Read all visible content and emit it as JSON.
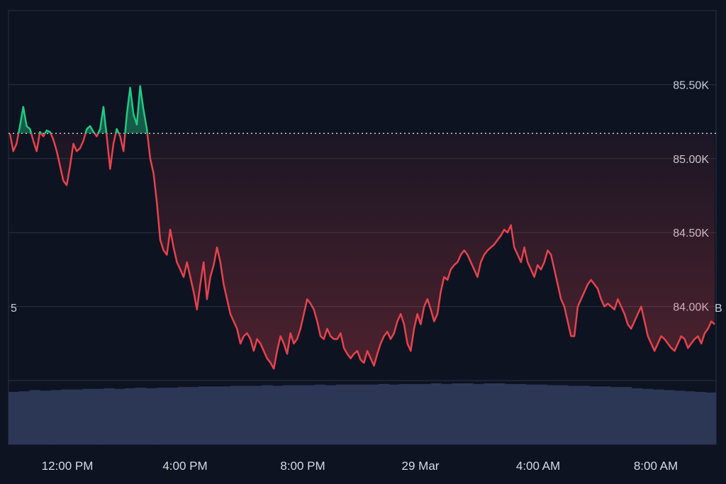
{
  "chart_data": {
    "type": "area",
    "x_ticks": [
      "12:00 PM",
      "4:00 PM",
      "8:00 PM",
      "29 Mar",
      "4:00 AM",
      "8:00 AM"
    ],
    "y_ticks": [
      "85.50K",
      "85.00K",
      "84.50K",
      "84.00K"
    ],
    "y_tick_values": [
      85500,
      85000,
      84500,
      84000
    ],
    "ylim": [
      83500,
      86000
    ],
    "baseline": 85170,
    "left_axis_stub": "5",
    "right_edge_stub": "B",
    "grid": true,
    "colors": {
      "up": "#23c883",
      "down": "#e5434d",
      "background": "#0d1321",
      "grid": "#2a3142",
      "volume": "#2c3756"
    },
    "series": [
      {
        "values": [
          85170,
          85050,
          85100,
          85220,
          85350,
          85220,
          85200,
          85120,
          85050,
          85180,
          85150,
          85190,
          85180,
          85130,
          85050,
          84950,
          84850,
          84820,
          84950,
          85100,
          85050,
          85070,
          85120,
          85200,
          85220,
          85180,
          85150,
          85200,
          85350,
          85150,
          84930,
          85100,
          85200,
          85150,
          85050,
          85300,
          85480,
          85300,
          85230,
          85490,
          85330,
          85200,
          85000,
          84900,
          84700,
          84450,
          84380,
          84350,
          84520,
          84400,
          84300,
          84250,
          84200,
          84300,
          84200,
          84100,
          83980,
          84150,
          84300,
          84050,
          84200,
          84280,
          84400,
          84300,
          84150,
          84050,
          83950,
          83900,
          83850,
          83750,
          83800,
          83820,
          83780,
          83700,
          83780,
          83750,
          83700,
          83650,
          83620,
          83580,
          83700,
          83800,
          83750,
          83680,
          83820,
          83750,
          83780,
          83850,
          83950,
          84050,
          84020,
          83980,
          83900,
          83800,
          83780,
          83850,
          83800,
          83780,
          83780,
          83820,
          83720,
          83680,
          83650,
          83680,
          83700,
          83640,
          83620,
          83700,
          83650,
          83600,
          83680,
          83750,
          83800,
          83830,
          83780,
          83820,
          83900,
          83950,
          83880,
          83750,
          83700,
          83850,
          83950,
          83880,
          84000,
          84050,
          83980,
          83900,
          83950,
          84100,
          84200,
          84180,
          84250,
          84280,
          84300,
          84350,
          84380,
          84350,
          84300,
          84250,
          84200,
          84300,
          84350,
          84380,
          84400,
          84420,
          84450,
          84480,
          84520,
          84500,
          84550,
          84400,
          84350,
          84300,
          84400,
          84300,
          84250,
          84200,
          84280,
          84250,
          84300,
          84380,
          84350,
          84250,
          84150,
          84050,
          84000,
          83900,
          83800,
          83800,
          84000,
          84050,
          84100,
          84150,
          84180,
          84150,
          84120,
          84050,
          84000,
          84020,
          84000,
          83980,
          84050,
          84000,
          83950,
          83880,
          83850,
          83900,
          83950,
          84000,
          83900,
          83800,
          83750,
          83700,
          83750,
          83800,
          83780,
          83750,
          83720,
          83700,
          83750,
          83800,
          83780,
          83720,
          83750,
          83780,
          83800,
          83750,
          83820,
          83850,
          83900,
          83880
        ]
      }
    ],
    "volume": [
      0.86,
      0.87,
      0.89,
      0.88,
      0.89,
      0.9,
      0.9,
      0.91,
      0.91,
      0.92,
      0.91,
      0.92,
      0.93,
      0.92,
      0.93,
      0.93,
      0.94,
      0.94,
      0.95,
      0.95,
      0.95,
      0.96,
      0.96,
      0.96,
      0.97,
      0.96,
      0.97,
      0.97,
      0.97,
      0.98,
      0.97,
      0.98,
      0.98,
      0.98,
      0.98,
      0.99,
      0.98,
      0.99,
      0.99,
      0.99,
      1.0,
      0.99,
      1.0,
      1.0,
      0.99,
      1.0,
      1.0,
      0.99,
      0.99,
      0.98,
      0.98,
      0.97,
      0.97,
      0.96,
      0.96,
      0.95,
      0.95,
      0.94,
      0.94,
      0.92,
      0.91,
      0.9,
      0.89,
      0.88,
      0.87,
      0.86,
      0.85
    ]
  }
}
